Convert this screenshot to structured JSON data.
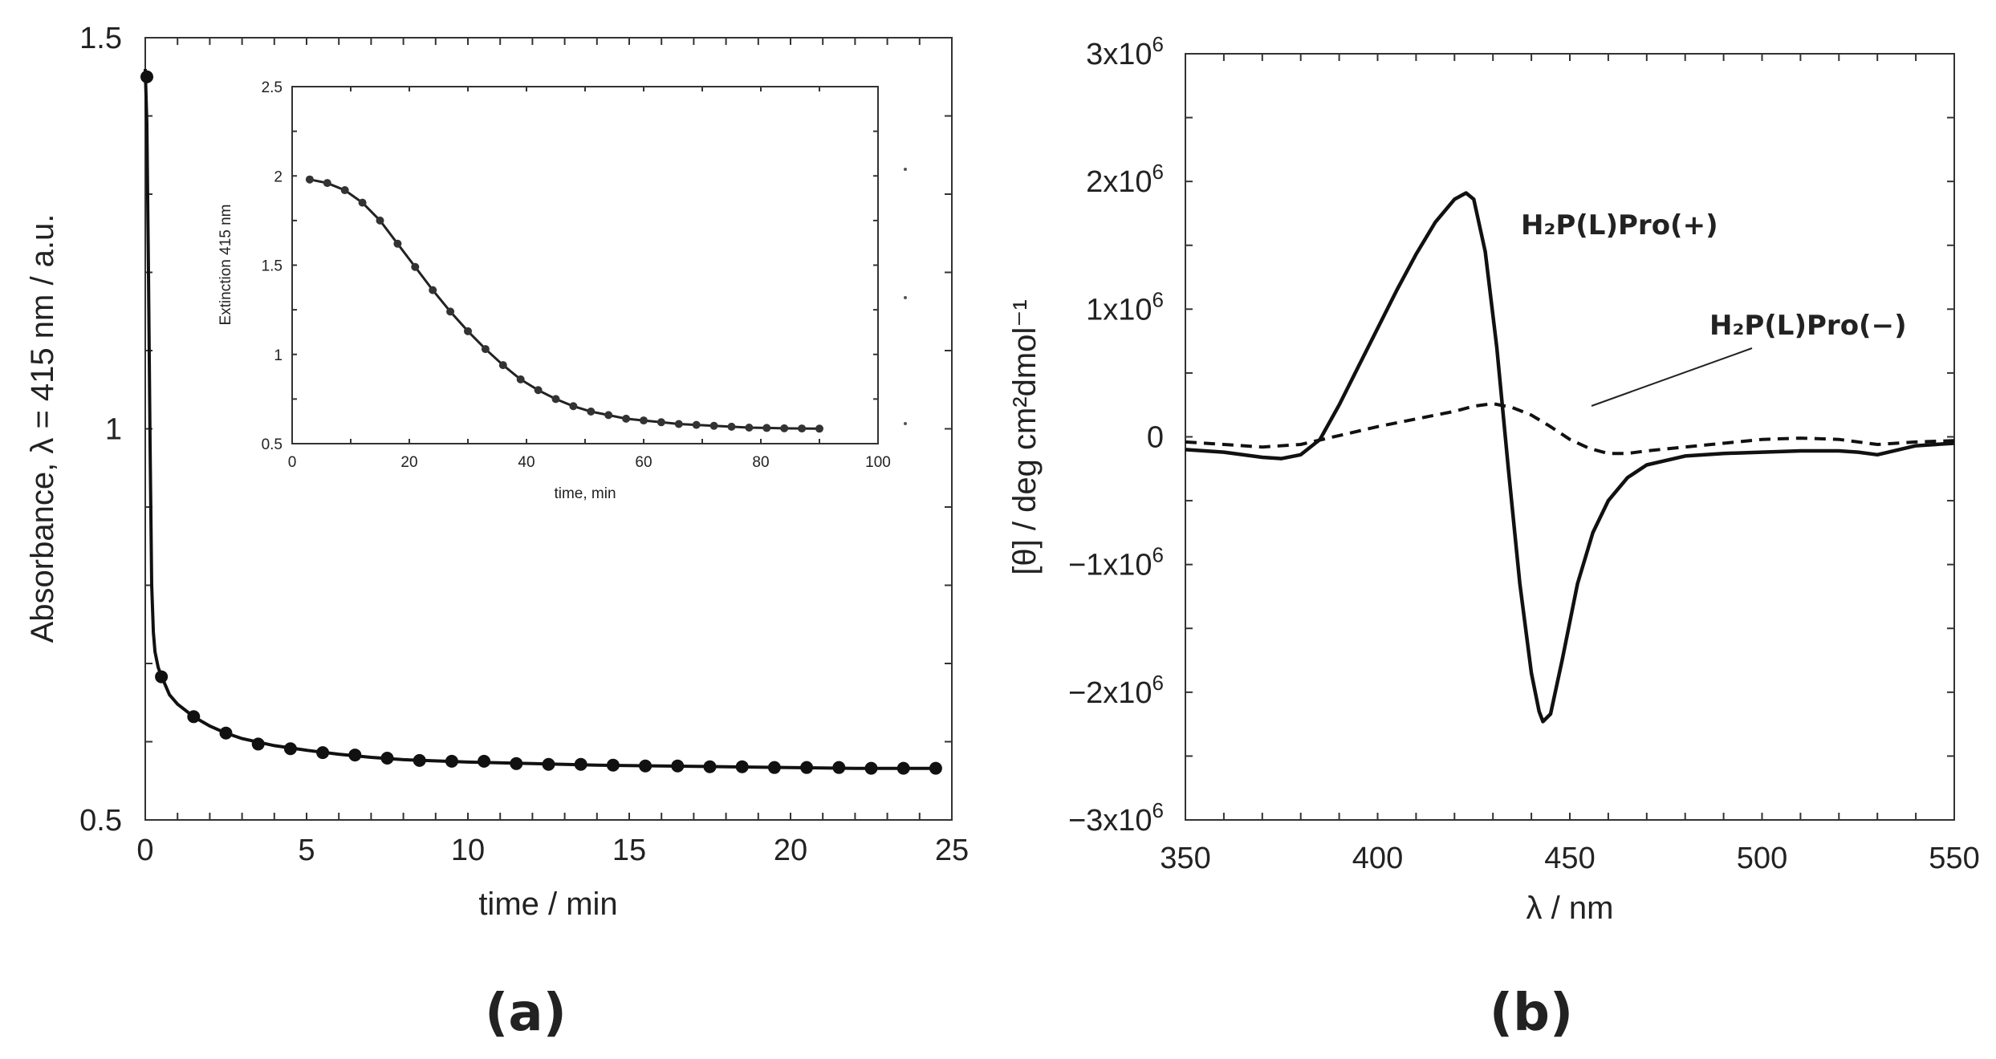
{
  "chart_data": [
    {
      "id": "a",
      "type": "scatter",
      "panel_label": "(a)",
      "title": "",
      "xlabel": "time / min",
      "ylabel": "Absorbance, λ = 415 nm / a.u.",
      "xlim": [
        0,
        25
      ],
      "ylim": [
        0.5,
        1.5
      ],
      "xticks": [
        0,
        5,
        10,
        15,
        20,
        25
      ],
      "xtick_labels": [
        "0",
        "5",
        "10",
        "15",
        "20",
        "25"
      ],
      "yticks": [
        0.5,
        1,
        1.5
      ],
      "ytick_labels": [
        "0.5",
        "1",
        "1.5"
      ],
      "grid": false,
      "series": [
        {
          "name": "data",
          "style": "filled-circles",
          "x": [
            0.05,
            0.5,
            1.5,
            2.5,
            3.5,
            4.5,
            5.5,
            6.5,
            7.5,
            8.5,
            9.5,
            10.5,
            11.5,
            12.5,
            13.5,
            14.5,
            15.5,
            16.5,
            17.5,
            18.5,
            19.5,
            20.5,
            21.5,
            22.5,
            23.5,
            24.5
          ],
          "y": [
            1.45,
            0.683,
            0.632,
            0.611,
            0.597,
            0.591,
            0.586,
            0.583,
            0.579,
            0.576,
            0.575,
            0.575,
            0.572,
            0.571,
            0.571,
            0.57,
            0.569,
            0.569,
            0.568,
            0.568,
            0.567,
            0.567,
            0.567,
            0.566,
            0.566,
            0.566
          ]
        },
        {
          "name": "fit",
          "style": "solid-line",
          "x": [
            0,
            0.05,
            0.1,
            0.15,
            0.2,
            0.25,
            0.3,
            0.4,
            0.5,
            0.75,
            1,
            1.5,
            2,
            2.5,
            3,
            4,
            5,
            6,
            7,
            8,
            10,
            12,
            14,
            16,
            18,
            20,
            22,
            24.5
          ],
          "y": [
            1.46,
            1.39,
            1.2,
            0.98,
            0.8,
            0.74,
            0.715,
            0.695,
            0.684,
            0.66,
            0.648,
            0.632,
            0.62,
            0.611,
            0.604,
            0.595,
            0.589,
            0.584,
            0.58,
            0.577,
            0.574,
            0.572,
            0.57,
            0.569,
            0.568,
            0.567,
            0.566,
            0.566
          ]
        }
      ],
      "inset": {
        "type": "scatter",
        "title": "",
        "xlabel": "time, min",
        "ylabel": "Extinction 415 nm",
        "xlim": [
          0,
          100
        ],
        "ylim": [
          0.5,
          2.5
        ],
        "xticks": [
          0,
          20,
          40,
          60,
          80,
          100
        ],
        "xtick_labels": [
          "0",
          "20",
          "40",
          "60",
          "80",
          "100"
        ],
        "yticks": [
          0.5,
          1,
          1.5,
          2,
          2.5
        ],
        "ytick_labels": [
          "0.5",
          "1",
          "1.5",
          "2",
          "2.5"
        ],
        "grid": false,
        "series": [
          {
            "name": "data",
            "style": "filled-circles",
            "x": [
              3,
              6,
              9,
              12,
              15,
              18,
              21,
              24,
              27,
              30,
              33,
              36,
              39,
              42,
              45,
              48,
              51,
              54,
              57,
              60,
              63,
              66,
              69,
              72,
              75,
              78,
              81,
              84,
              87,
              90
            ],
            "y": [
              1.98,
              1.96,
              1.92,
              1.85,
              1.75,
              1.62,
              1.49,
              1.36,
              1.24,
              1.13,
              1.03,
              0.94,
              0.86,
              0.8,
              0.75,
              0.71,
              0.68,
              0.66,
              0.64,
              0.63,
              0.62,
              0.61,
              0.605,
              0.6,
              0.595,
              0.59,
              0.588,
              0.586,
              0.585,
              0.584
            ]
          },
          {
            "name": "fit",
            "style": "solid-line",
            "x": [
              3,
              6,
              9,
              12,
              15,
              18,
              21,
              24,
              27,
              30,
              33,
              36,
              39,
              42,
              45,
              48,
              51,
              54,
              57,
              60,
              63,
              66,
              69,
              72,
              75,
              78,
              81,
              84,
              87,
              90
            ],
            "y": [
              1.98,
              1.96,
              1.92,
              1.85,
              1.75,
              1.62,
              1.49,
              1.36,
              1.24,
              1.13,
              1.03,
              0.94,
              0.86,
              0.8,
              0.75,
              0.71,
              0.68,
              0.66,
              0.64,
              0.63,
              0.62,
              0.61,
              0.605,
              0.6,
              0.595,
              0.59,
              0.588,
              0.586,
              0.585,
              0.584
            ]
          }
        ]
      }
    },
    {
      "id": "b",
      "type": "line",
      "panel_label": "(b)",
      "title": "",
      "xlabel": "λ / nm",
      "ylabel": "[θ] / deg cm²dmol⁻¹",
      "xlim": [
        350,
        550
      ],
      "ylim": [
        -3000000,
        3000000
      ],
      "xticks": [
        350,
        400,
        450,
        500,
        550
      ],
      "xtick_labels": [
        "350",
        "400",
        "450",
        "500",
        "550"
      ],
      "yticks": [
        3000000,
        2000000,
        1000000,
        0,
        -1000000,
        -2000000,
        -3000000
      ],
      "ytick_labels": [
        "3x10",
        "2x10",
        "1x10",
        "0",
        "−1x10",
        "−2x10",
        "−3x10"
      ],
      "ytick_exponents": [
        "6",
        "6",
        "6",
        "",
        "6",
        "6",
        "6"
      ],
      "grid": false,
      "series": [
        {
          "name": "H₂P(L)Pro(+)",
          "style": "solid",
          "label_text": "H₂P(L)Pro(+)",
          "x": [
            350,
            360,
            370,
            375,
            380,
            385,
            390,
            395,
            400,
            405,
            410,
            415,
            420,
            423,
            425,
            428,
            431,
            434,
            437,
            440,
            442,
            443,
            445,
            448,
            452,
            456,
            460,
            465,
            470,
            480,
            490,
            500,
            510,
            520,
            525,
            530,
            540,
            550
          ],
          "y": [
            -100000,
            -120000,
            -160000,
            -170000,
            -140000,
            -20000,
            250000,
            550000,
            850000,
            1150000,
            1430000,
            1680000,
            1860000,
            1910000,
            1860000,
            1450000,
            700000,
            -250000,
            -1150000,
            -1850000,
            -2150000,
            -2230000,
            -2170000,
            -1750000,
            -1150000,
            -750000,
            -500000,
            -320000,
            -220000,
            -150000,
            -130000,
            -120000,
            -110000,
            -110000,
            -120000,
            -140000,
            -70000,
            -50000
          ]
        },
        {
          "name": "H₂P(L)Pro(−)",
          "style": "dashed",
          "label_text": "H₂P(L)Pro(−)",
          "x": [
            350,
            360,
            370,
            380,
            390,
            400,
            410,
            420,
            425,
            430,
            435,
            440,
            445,
            450,
            455,
            460,
            465,
            470,
            480,
            490,
            500,
            510,
            520,
            530,
            540,
            550
          ],
          "y": [
            -40000,
            -60000,
            -80000,
            -60000,
            10000,
            80000,
            140000,
            200000,
            240000,
            260000,
            230000,
            170000,
            80000,
            -20000,
            -90000,
            -130000,
            -130000,
            -110000,
            -80000,
            -50000,
            -20000,
            -10000,
            -20000,
            -60000,
            -40000,
            -30000
          ]
        }
      ]
    }
  ]
}
